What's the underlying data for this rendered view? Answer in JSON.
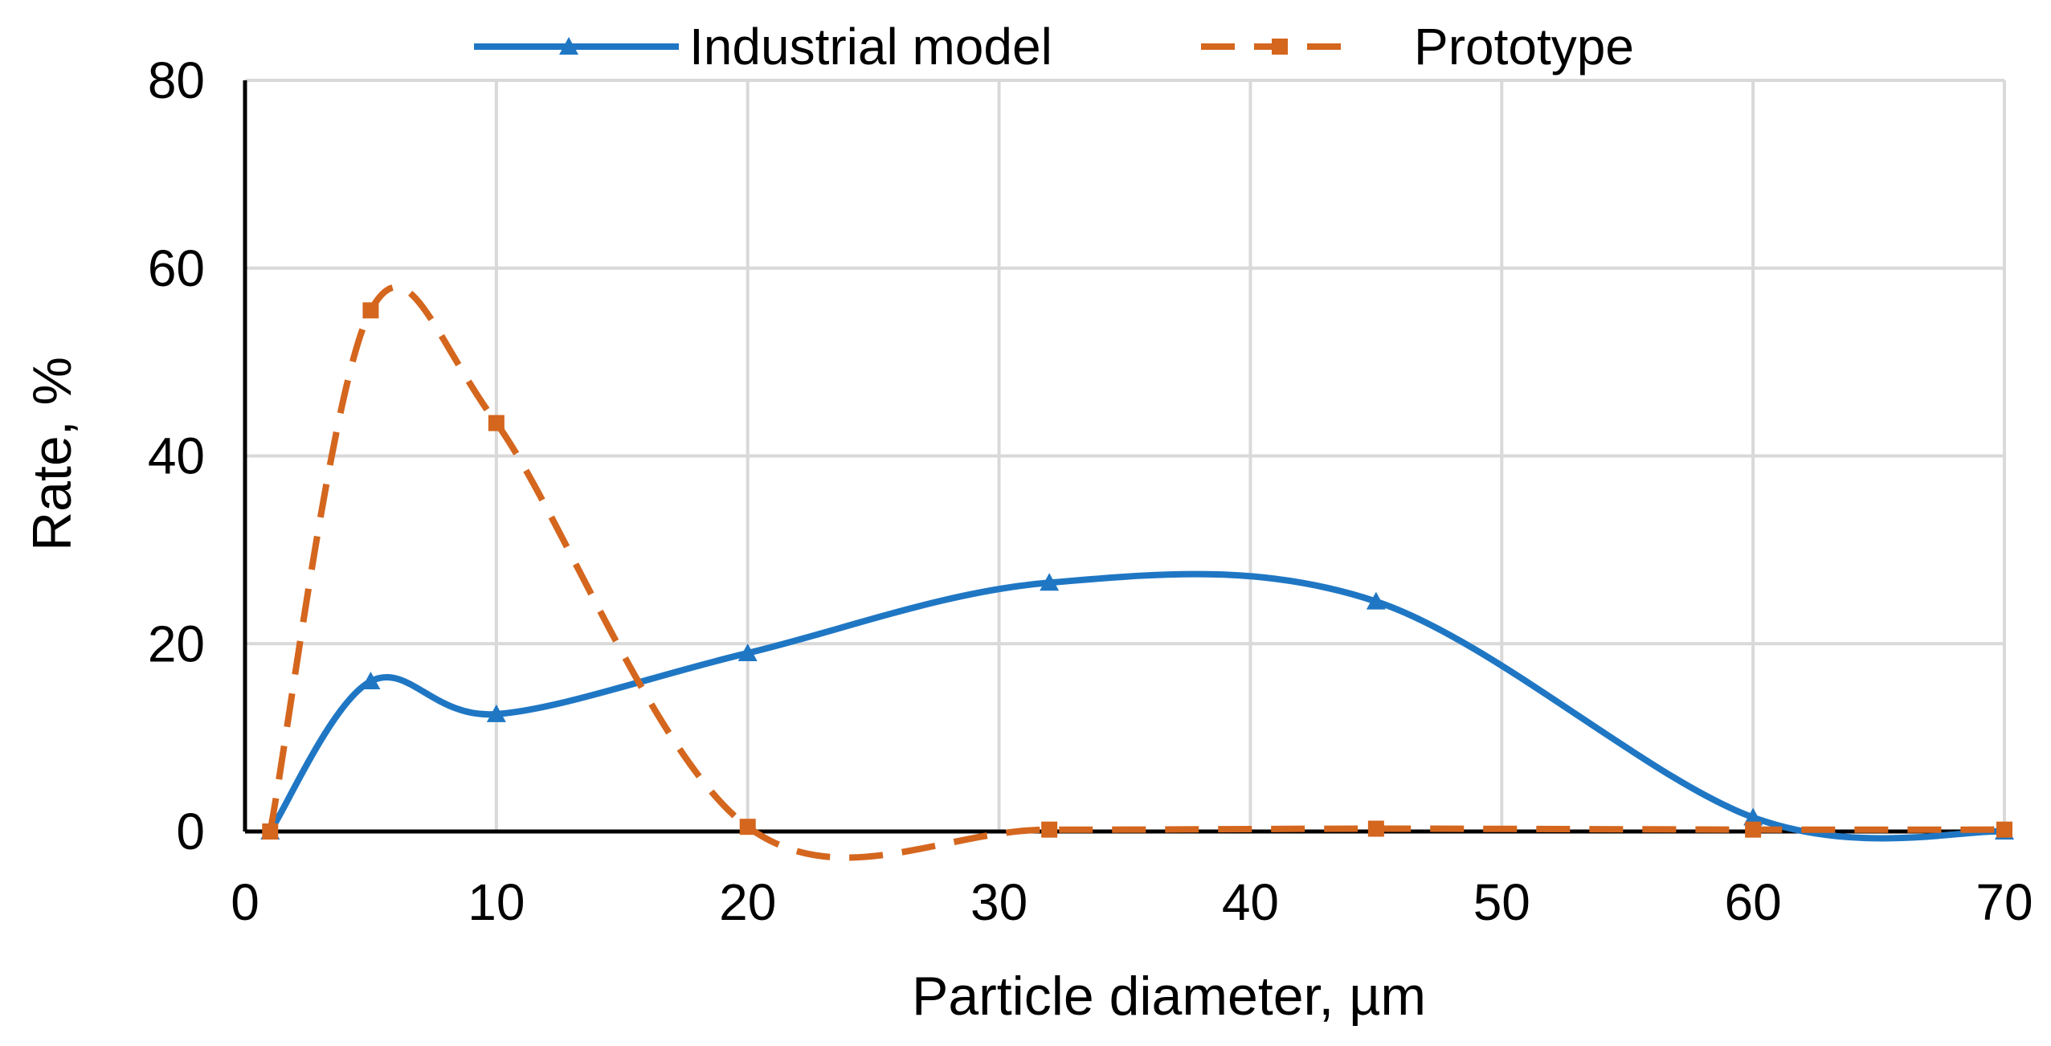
{
  "chart_data": {
    "type": "line",
    "title": "",
    "xlabel": "Particle diameter, µm",
    "ylabel": "Rate, %",
    "xlim": [
      0,
      70
    ],
    "ylim": [
      0,
      80
    ],
    "xticks": [
      0,
      10,
      20,
      30,
      40,
      50,
      60,
      70
    ],
    "yticks": [
      0,
      20,
      40,
      60,
      80
    ],
    "grid": true,
    "legend_position": "top",
    "series": [
      {
        "name": "Industrial model",
        "color": "#1f77c4",
        "line_style": "solid",
        "marker": "triangle",
        "x": [
          1,
          5,
          10,
          20,
          32,
          45,
          60,
          70
        ],
        "y": [
          0,
          16,
          12.5,
          19,
          26.5,
          24.5,
          1.5,
          0
        ]
      },
      {
        "name": "Prototype",
        "color": "#d4661e",
        "line_style": "dashed",
        "marker": "square",
        "x": [
          1,
          5,
          10,
          20,
          32,
          45,
          60,
          70
        ],
        "y": [
          0,
          55.5,
          43.5,
          0.5,
          0.2,
          0.3,
          0.2,
          0.2
        ]
      }
    ]
  }
}
